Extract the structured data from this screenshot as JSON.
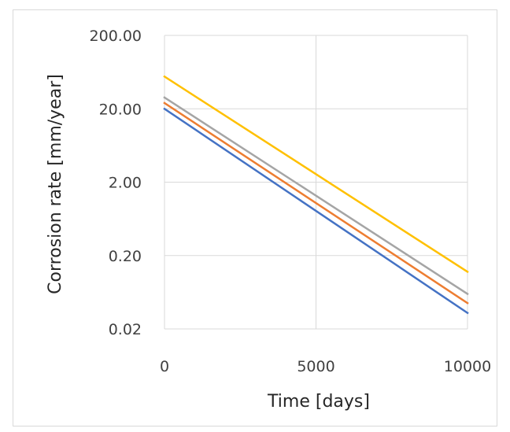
{
  "chart_data": {
    "type": "line",
    "title": "",
    "xlabel": "Time [days]",
    "ylabel": "Corrosion rate [mm/year]",
    "xlim": [
      0,
      10000
    ],
    "ylim": [
      0.02,
      200
    ],
    "y_scale": "log",
    "grid": true,
    "legend": "none",
    "x_ticks": [
      {
        "value": 0,
        "label": "0"
      },
      {
        "value": 5000,
        "label": "5000"
      },
      {
        "value": 10000,
        "label": "10000"
      }
    ],
    "y_ticks": [
      {
        "value": 200,
        "label": "200.00"
      },
      {
        "value": 20,
        "label": "20.00"
      },
      {
        "value": 2,
        "label": "2.00"
      },
      {
        "value": 0.2,
        "label": "0.20"
      },
      {
        "value": 0.02,
        "label": "0.02"
      }
    ],
    "series": [
      {
        "color": "#4472c4",
        "x": [
          0,
          10000
        ],
        "y": [
          20.0,
          0.033
        ]
      },
      {
        "color": "#ed7d31",
        "x": [
          0,
          10000
        ],
        "y": [
          24.0,
          0.045
        ]
      },
      {
        "color": "#a5a5a5",
        "x": [
          0,
          10000
        ],
        "y": [
          28.5,
          0.06
        ]
      },
      {
        "color": "#ffc000",
        "x": [
          0,
          10000
        ],
        "y": [
          55.0,
          0.12
        ]
      }
    ]
  }
}
